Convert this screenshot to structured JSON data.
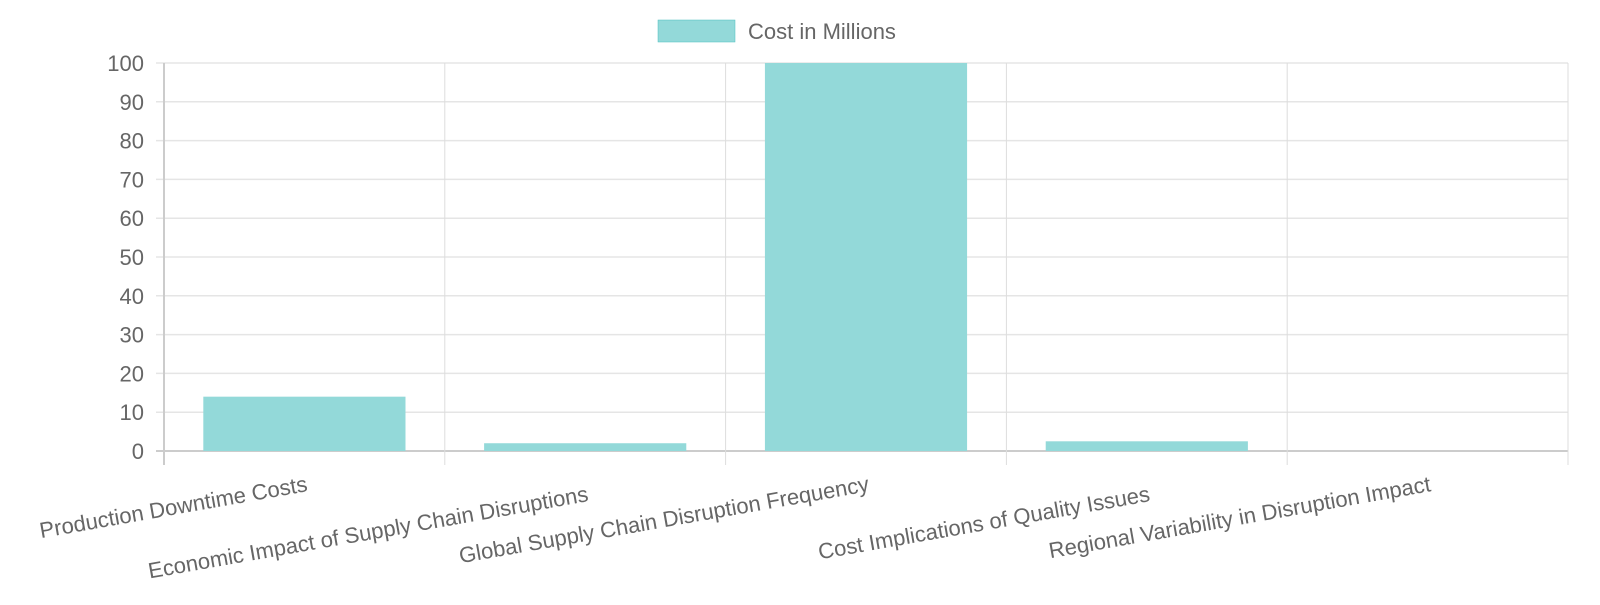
{
  "chart_data": {
    "type": "bar",
    "title": "",
    "xlabel": "",
    "ylabel": "",
    "categories": [
      "Production Downtime Costs",
      "Economic Impact of Supply Chain Disruptions",
      "Global Supply Chain Disruption Frequency",
      "Cost Implications of Quality Issues",
      "Regional Variability in Disruption Impact"
    ],
    "series": [
      {
        "name": "Cost in Millions",
        "values": [
          14,
          2,
          100,
          2.5,
          0
        ]
      }
    ],
    "ylim": [
      0,
      100
    ],
    "yticks": [
      0,
      10,
      20,
      30,
      40,
      50,
      60,
      70,
      80,
      90,
      100
    ],
    "grid": true,
    "legend": "top",
    "colors": {
      "bar_fill": "#93d9d9",
      "bar_border": "#4bc0c0",
      "grid": "#e5e5e5"
    }
  }
}
